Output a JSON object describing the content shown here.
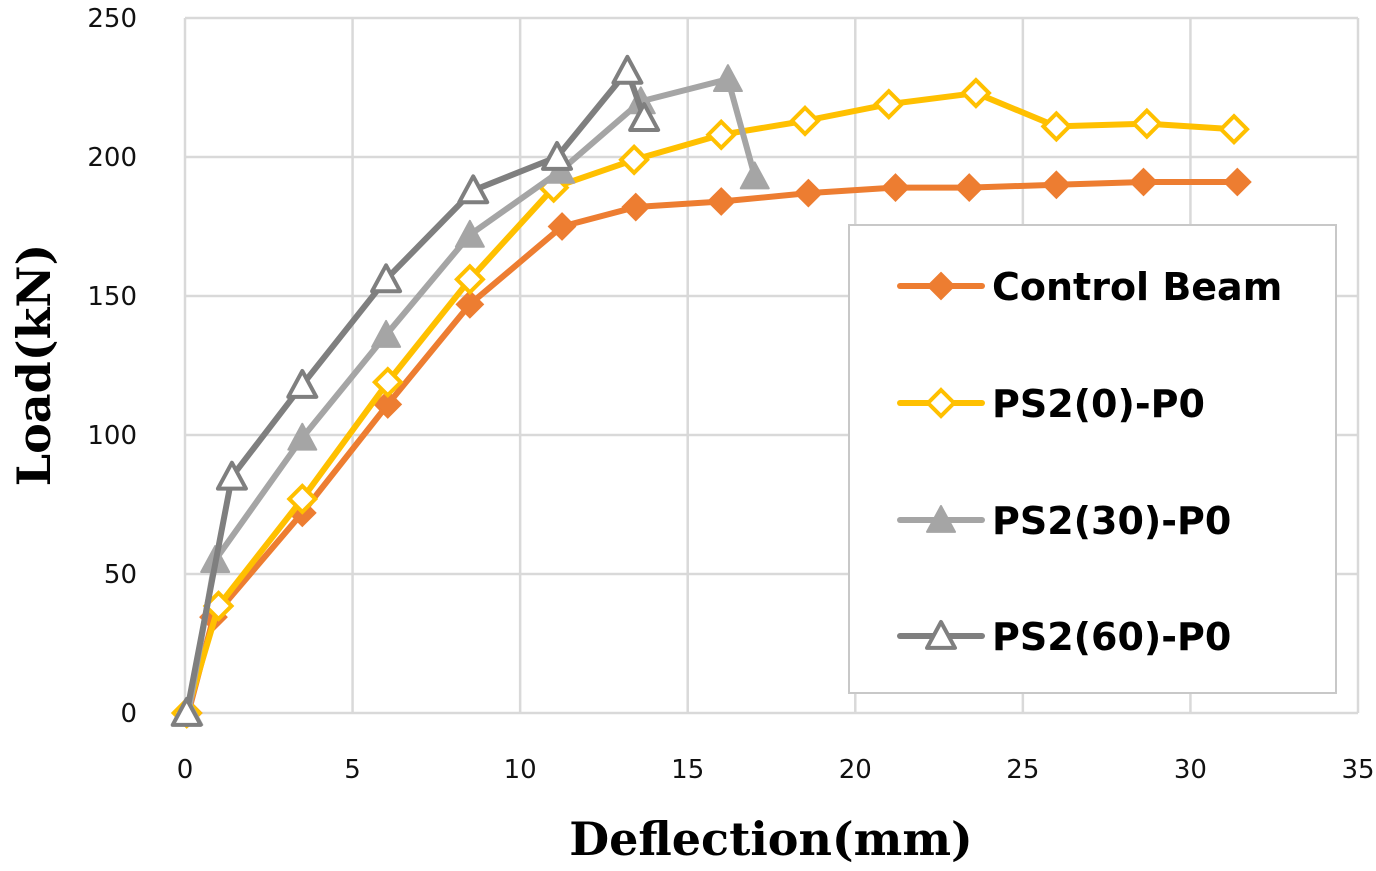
{
  "chart_data": {
    "type": "line",
    "title": "",
    "xlabel": "Deflection(mm)",
    "ylabel": "Load(kN)",
    "xlim": [
      0,
      35
    ],
    "ylim": [
      0,
      250
    ],
    "xticks": [
      0,
      5,
      10,
      15,
      20,
      25,
      30,
      35
    ],
    "yticks": [
      0,
      50,
      100,
      150,
      200,
      250
    ],
    "grid": true,
    "legend_position": "right",
    "series": [
      {
        "name": "Control Beam",
        "color": "#ED7D31",
        "marker": "diamond-filled",
        "x": [
          0.1,
          0.85,
          3.5,
          6.05,
          8.5,
          11.25,
          13.45,
          16.0,
          18.6,
          21.2,
          23.4,
          26.0,
          28.6,
          31.4
        ],
        "y": [
          0,
          34.5,
          72,
          111,
          147,
          175,
          182,
          184,
          187,
          189,
          189,
          190,
          191,
          191
        ]
      },
      {
        "name": "PS2(0)-P0",
        "color": "#FFC000",
        "marker": "diamond-open",
        "x": [
          0.05,
          1.0,
          3.5,
          6.05,
          8.5,
          11.0,
          13.4,
          16.0,
          18.5,
          21.0,
          23.6,
          26.0,
          28.7,
          31.3
        ],
        "y": [
          0,
          38.5,
          77,
          119,
          156,
          189,
          199,
          208,
          213,
          219,
          223,
          211,
          212,
          210
        ]
      },
      {
        "name": "PS2(30)-P0",
        "color": "#A5A5A5",
        "marker": "triangle-filled",
        "x": [
          0.1,
          0.9,
          3.5,
          6.0,
          8.5,
          11.2,
          13.6,
          16.2,
          17.0
        ],
        "y": [
          0,
          55,
          99,
          136,
          172,
          195,
          220,
          228,
          193
        ]
      },
      {
        "name": "PS2(60)-P0",
        "color": "#7F7F7F",
        "marker": "triangle-open",
        "x": [
          0.05,
          1.4,
          3.5,
          6.0,
          8.6,
          11.1,
          13.2,
          13.7
        ],
        "y": [
          0,
          85,
          118,
          156,
          188,
          200,
          231,
          214
        ]
      }
    ]
  }
}
